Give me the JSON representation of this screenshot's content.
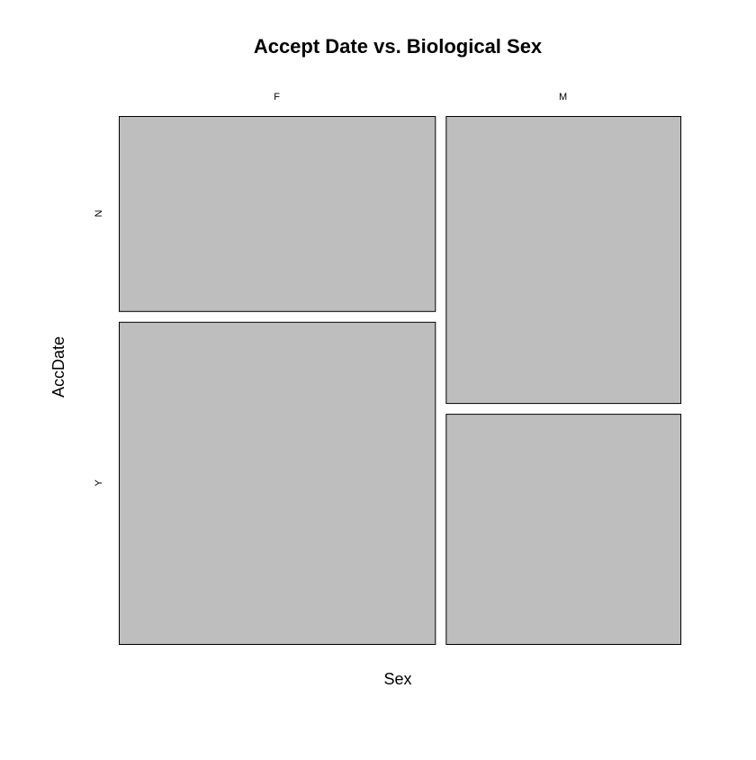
{
  "chart_data": {
    "type": "mosaic",
    "title": "Accept Date vs. Biological Sex",
    "xlabel": "Sex",
    "ylabel": "AccDate",
    "x_categories": [
      "F",
      "M"
    ],
    "y_categories": [
      "N",
      "Y"
    ],
    "x_proportions": [
      0.574,
      0.426
    ],
    "y_proportions": {
      "F": {
        "N": 0.377,
        "Y": 0.623
      },
      "M": {
        "N": 0.555,
        "Y": 0.445
      }
    },
    "fill_color": "#bebebe",
    "stroke_color": "#000000"
  }
}
